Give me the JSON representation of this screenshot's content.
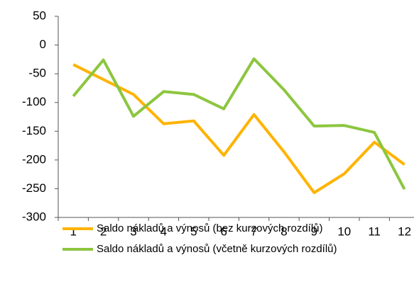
{
  "chart_data": {
    "type": "line",
    "categories": [
      "1",
      "2",
      "3",
      "4",
      "5",
      "6",
      "7",
      "8",
      "9",
      "10",
      "11",
      "12"
    ],
    "series": [
      {
        "name": "Saldo nákladů a výnosů (bez kurzových rozdílů)",
        "color": "#ffb300",
        "values": [
          -34,
          -60,
          -86,
          -137,
          -132,
          -192,
          -121,
          -186,
          -257,
          -224,
          -169,
          -208
        ]
      },
      {
        "name": "Saldo nákladů a výnosů (včetně kurzových rozdílů)",
        "color": "#8cc63f",
        "values": [
          -89,
          -26,
          -124,
          -81,
          -86,
          -111,
          -24,
          -78,
          -141,
          -140,
          -152,
          -251
        ]
      }
    ],
    "ylim": [
      -300,
      50
    ],
    "yticks": [
      -300,
      -250,
      -200,
      -150,
      -100,
      -50,
      0,
      50
    ],
    "grid": false
  }
}
